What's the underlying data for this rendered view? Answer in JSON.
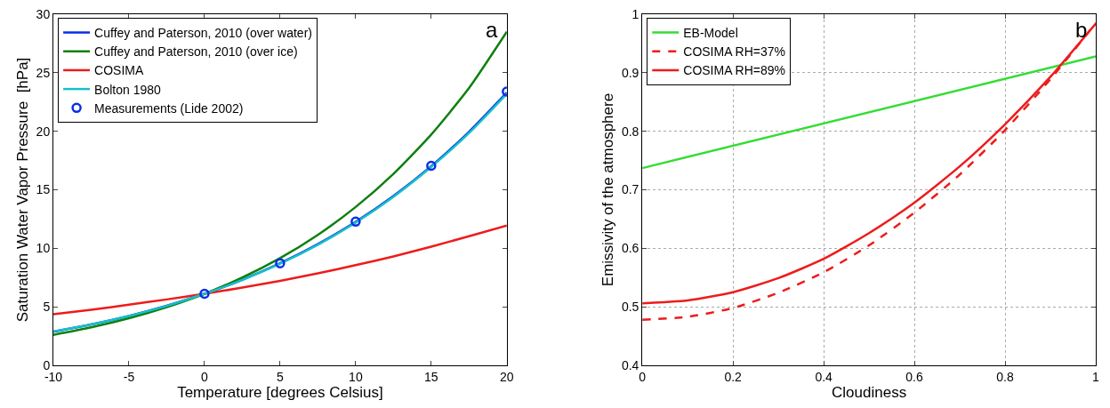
{
  "chart_data": [
    {
      "type": "line",
      "xlabel": "Temperature [degrees Celsius]",
      "ylabel": "Saturation Water Vapor Pressure  [hPa]",
      "annotations": [
        "a"
      ],
      "x": [
        -10,
        -7.5,
        -5,
        -2.5,
        0,
        2.5,
        5,
        7.5,
        10,
        12.5,
        15,
        17.5,
        20
      ],
      "xlim": [
        -10,
        20
      ],
      "xticks": [
        -10,
        -5,
        0,
        5,
        10,
        15,
        20
      ],
      "ylim": [
        0,
        30
      ],
      "yticks": [
        0,
        5,
        10,
        15,
        20,
        25,
        30
      ],
      "grid": false,
      "legend": "top left",
      "series": [
        {
          "name": "Cuffey and Paterson, 2010 (over water)",
          "color": "#0a2ee6",
          "values": [
            2.87,
            3.49,
            4.22,
            5.09,
            6.11,
            7.31,
            8.72,
            10.36,
            12.26,
            14.47,
            17.02,
            19.95,
            23.3
          ]
        },
        {
          "name": "Cuffey and Paterson, 2010 (over ice)",
          "color": "#0f7f0f",
          "values": [
            2.6,
            3.24,
            4.02,
            4.97,
            6.11,
            7.5,
            9.16,
            11.15,
            13.53,
            16.36,
            19.72,
            23.69,
            28.5
          ]
        },
        {
          "name": "COSIMA",
          "color": "#ee1b1b",
          "values": [
            4.37,
            4.75,
            5.18,
            5.63,
            6.11,
            6.64,
            7.22,
            7.86,
            8.56,
            9.31,
            10.14,
            11.03,
            11.94
          ]
        },
        {
          "name": "Bolton 1980",
          "color": "#16c0c8",
          "values": [
            2.9,
            3.5,
            4.22,
            5.08,
            6.11,
            7.3,
            8.68,
            10.3,
            12.2,
            14.4,
            16.95,
            19.85,
            23.2
          ]
        },
        {
          "name": "Measurements (Lide 2002)",
          "type": "scatter",
          "marker": "circle",
          "color": "#0a2ee6",
          "x": [
            0,
            5,
            10,
            15,
            20
          ],
          "values": [
            6.11,
            8.72,
            12.28,
            17.05,
            23.39
          ]
        }
      ]
    },
    {
      "type": "line",
      "xlabel": "Cloudiness",
      "ylabel": "Emissivity of the atmosphere",
      "annotations": [
        "b"
      ],
      "x": [
        0,
        0.1,
        0.2,
        0.3,
        0.4,
        0.5,
        0.6,
        0.7,
        0.8,
        0.9,
        1
      ],
      "xlim": [
        0,
        1
      ],
      "xticks": [
        0,
        0.2,
        0.4,
        0.6,
        0.8,
        1
      ],
      "ylim": [
        0.4,
        1
      ],
      "yticks": [
        0.4,
        0.5,
        0.6,
        0.7,
        0.8,
        0.9,
        1
      ],
      "grid": true,
      "legend": "top left",
      "series": [
        {
          "name": "EB-Model",
          "color": "#33dd33",
          "x": [
            0,
            1
          ],
          "values": [
            0.737,
            0.928
          ]
        },
        {
          "name": "COSIMA RH=37%",
          "color": "#ee1b1b",
          "line_style": "dashed",
          "values": [
            0.478,
            0.483,
            0.498,
            0.524,
            0.559,
            0.605,
            0.661,
            0.726,
            0.802,
            0.889,
            0.985
          ]
        },
        {
          "name": "COSIMA RH=89%",
          "color": "#ee1b1b",
          "line_style": "solid",
          "values": [
            0.506,
            0.511,
            0.525,
            0.549,
            0.582,
            0.626,
            0.678,
            0.74,
            0.812,
            0.893,
            0.984
          ]
        }
      ]
    }
  ]
}
